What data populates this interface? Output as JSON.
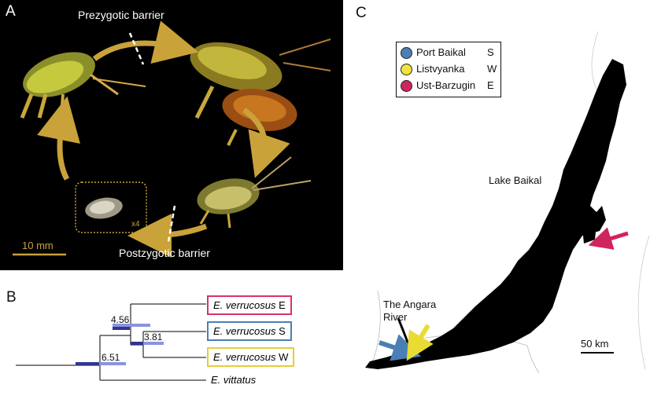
{
  "panel_a": {
    "letter": "A",
    "prezygotic_label": "Prezygotic barrier",
    "postzygotic_label": "Postzygotic barrier",
    "scale_label": "10 mm",
    "magnification_label": "x4",
    "accent_color": "#c9a23a"
  },
  "panel_b": {
    "letter": "B",
    "node_ages": [
      "4.56",
      "3.81",
      "6.51"
    ],
    "taxa": [
      {
        "genus": "E. verrucosus",
        "code": "E",
        "color": "#d6336c"
      },
      {
        "genus": "E. verrucosus",
        "code": "S",
        "color": "#4a7fb5"
      },
      {
        "genus": "E. verrucosus",
        "code": "W",
        "color": "#e3cf3a"
      },
      {
        "genus": "E. vittatus",
        "code": ""
      }
    ],
    "hpd_colors": {
      "light": "#8a93e0",
      "dark": "#2f3590"
    }
  },
  "panel_c": {
    "letter": "C",
    "legend": [
      {
        "name": "Port Baikal",
        "code": "S",
        "color": "#4a7fb5"
      },
      {
        "name": "Listvyanka",
        "code": "W",
        "color": "#f1e33c"
      },
      {
        "name": "Ust-Barzugin",
        "code": "E",
        "color": "#d0245e"
      }
    ],
    "lake_label": "Lake Baikal",
    "river_label_line1": "The Angara",
    "river_label_line2": "River",
    "scale_label": "50 km"
  }
}
